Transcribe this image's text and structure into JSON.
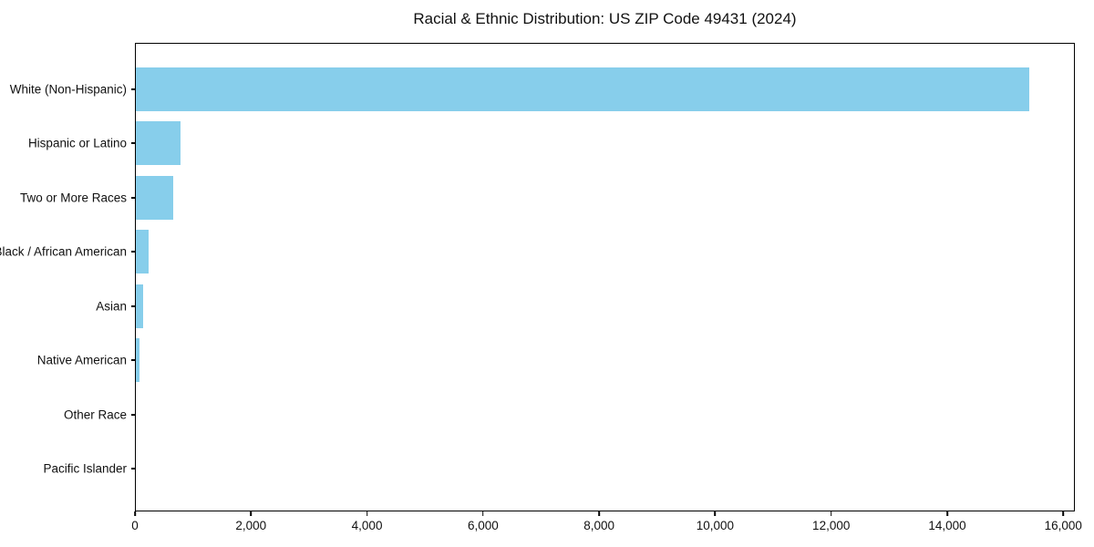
{
  "chart_data": {
    "type": "bar",
    "orientation": "horizontal",
    "title": "Racial & Ethnic Distribution: US ZIP Code 49431 (2024)",
    "categories": [
      "White (Non-Hispanic)",
      "Hispanic or Latino",
      "Two or More Races",
      "Black / African American",
      "Asian",
      "Native American",
      "Other Race",
      "Pacific Islander"
    ],
    "values": [
      15430,
      765,
      640,
      215,
      125,
      70,
      0,
      0
    ],
    "bar_color": "#87CEEB",
    "xlabel": "",
    "ylabel": "",
    "xlim": [
      0,
      16200
    ],
    "xticks": [
      0,
      2000,
      4000,
      6000,
      8000,
      10000,
      12000,
      14000,
      16000
    ],
    "xtick_labels": [
      "0",
      "2,000",
      "4,000",
      "6,000",
      "8,000",
      "10,000",
      "12,000",
      "14,000",
      "16,000"
    ],
    "grid": false,
    "legend": null,
    "frame": true,
    "background_color": "#ffffff",
    "text_color": "#111111"
  }
}
